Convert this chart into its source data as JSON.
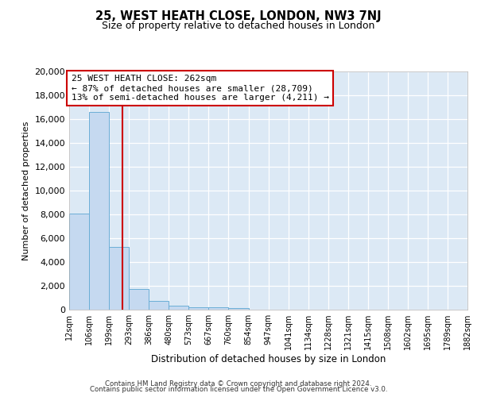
{
  "title": "25, WEST HEATH CLOSE, LONDON, NW3 7NJ",
  "subtitle": "Size of property relative to detached houses in London",
  "xlabel": "Distribution of detached houses by size in London",
  "ylabel": "Number of detached properties",
  "bar_values": [
    8100,
    16600,
    5300,
    1750,
    750,
    320,
    230,
    175,
    150,
    0,
    0,
    0,
    0,
    0,
    0,
    0,
    0,
    0,
    0,
    0
  ],
  "bar_edges": [
    12,
    106,
    199,
    293,
    386,
    480,
    573,
    667,
    760,
    854,
    947,
    1041,
    1134,
    1228,
    1321,
    1415,
    1508,
    1602,
    1695,
    1789,
    1882
  ],
  "tick_labels": [
    "12sqm",
    "106sqm",
    "199sqm",
    "293sqm",
    "386sqm",
    "480sqm",
    "573sqm",
    "667sqm",
    "760sqm",
    "854sqm",
    "947sqm",
    "1041sqm",
    "1134sqm",
    "1228sqm",
    "1321sqm",
    "1415sqm",
    "1508sqm",
    "1602sqm",
    "1695sqm",
    "1789sqm",
    "1882sqm"
  ],
  "property_size": 262,
  "vline_x": 262,
  "annotation_title": "25 WEST HEATH CLOSE: 262sqm",
  "annotation_line1": "← 87% of detached houses are smaller (28,709)",
  "annotation_line2": "13% of semi-detached houses are larger (4,211) →",
  "bar_color": "#c5d9f0",
  "bar_edge_color": "#6baed6",
  "vline_color": "#cc0000",
  "annotation_box_edge": "#cc0000",
  "annotation_text_color": "#000000",
  "fig_bg_color": "#ffffff",
  "plot_bg_color": "#dce9f5",
  "ylim": [
    0,
    20000
  ],
  "yticks": [
    0,
    2000,
    4000,
    6000,
    8000,
    10000,
    12000,
    14000,
    16000,
    18000,
    20000
  ],
  "footer_line1": "Contains HM Land Registry data © Crown copyright and database right 2024.",
  "footer_line2": "Contains public sector information licensed under the Open Government Licence v3.0."
}
